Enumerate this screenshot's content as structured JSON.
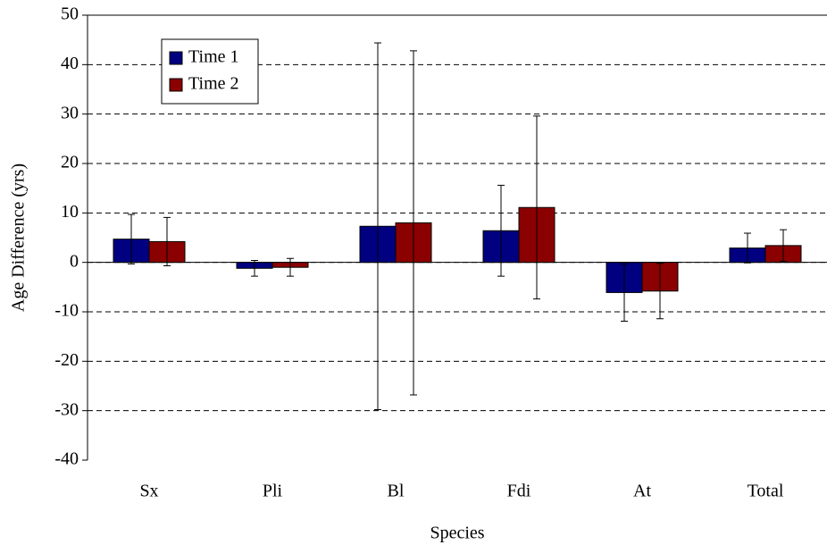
{
  "chart_data": {
    "type": "bar",
    "x_label": "Species",
    "y_label": "Age Difference (yrs)",
    "categories": [
      "Sx",
      "Pli",
      "Bl",
      "Fdi",
      "At",
      "Total"
    ],
    "series": [
      {
        "name": "Time 1",
        "color": "#000080",
        "values": [
          4.7,
          -1.2,
          7.3,
          6.4,
          -6.1,
          2.9
        ],
        "errors": [
          5.0,
          1.6,
          37.1,
          9.2,
          5.8,
          3.0
        ]
      },
      {
        "name": "Time 2",
        "color": "#8b0000",
        "values": [
          4.2,
          -1.0,
          8.0,
          11.1,
          -5.8,
          3.4
        ],
        "errors": [
          4.9,
          1.8,
          34.8,
          18.5,
          5.6,
          3.2
        ]
      }
    ],
    "ylim": [
      -40,
      50
    ],
    "yticks": [
      -40,
      -30,
      -20,
      -10,
      0,
      10,
      20,
      30,
      40,
      50
    ],
    "grid": true,
    "legend": "upper left"
  }
}
